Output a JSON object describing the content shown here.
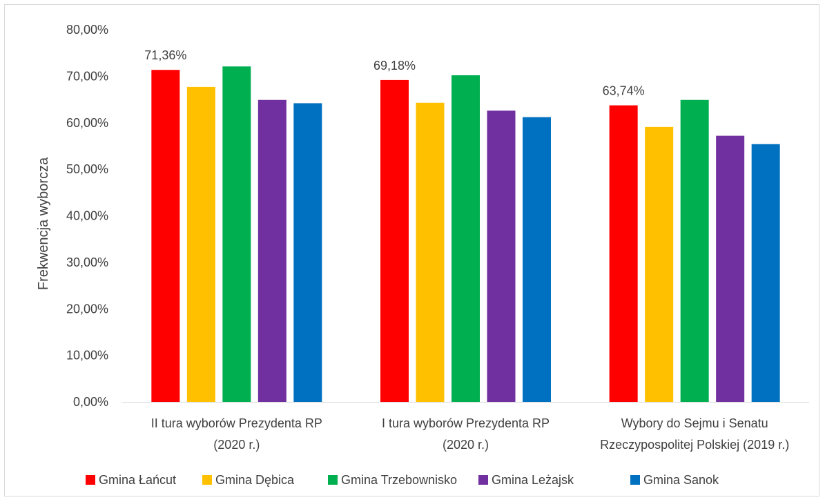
{
  "chart_data": {
    "type": "bar",
    "title": "",
    "xlabel": "",
    "ylabel": "Frekwencja wyborcza",
    "ylim": [
      0,
      80
    ],
    "yticks": [
      "0,00%",
      "10,00%",
      "20,00%",
      "30,00%",
      "40,00%",
      "50,00%",
      "60,00%",
      "70,00%",
      "80,00%"
    ],
    "grid": false,
    "legend_position": "bottom",
    "categories": [
      [
        "II tura wyborów Prezydenta RP",
        "(2020 r.)"
      ],
      [
        "I tura wyborów Prezydenta RP",
        "(2020 r.)"
      ],
      [
        "Wybory do Sejmu i Senatu",
        "Rzeczypospolitej Polskiej (2019 r.)"
      ]
    ],
    "series": [
      {
        "name": "Gmina Łańcut",
        "color": "#ff0000",
        "values": [
          71.36,
          69.18,
          63.74
        ],
        "labels": [
          "71,36%",
          "69,18%",
          "63,74%"
        ]
      },
      {
        "name": "Gmina Dębica",
        "color": "#ffc000",
        "values": [
          67.7,
          64.3,
          59.1
        ]
      },
      {
        "name": "Gmina Trzebownisko",
        "color": "#00b050",
        "values": [
          72.1,
          70.2,
          64.9
        ]
      },
      {
        "name": "Gmina Leżajsk",
        "color": "#7030a0",
        "values": [
          64.9,
          62.6,
          57.2
        ]
      },
      {
        "name": "Gmina Sanok",
        "color": "#0070c0",
        "values": [
          64.2,
          61.2,
          55.4
        ]
      }
    ]
  }
}
